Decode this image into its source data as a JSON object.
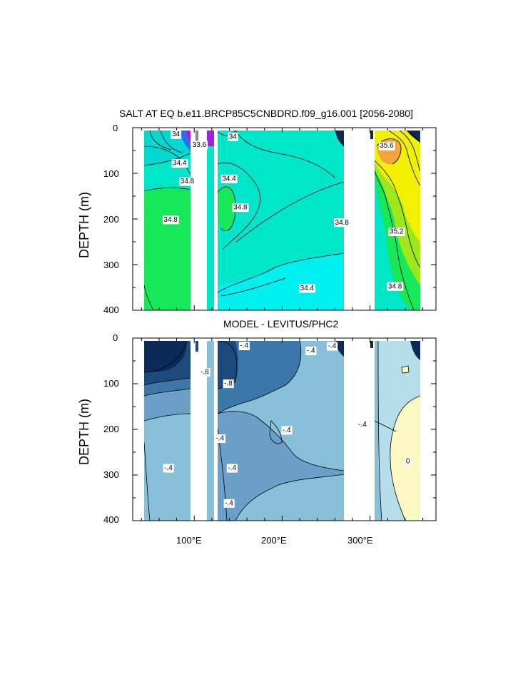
{
  "chart_data": [
    {
      "type": "heatmap",
      "title": "SALT AT EQ b.e11.BRCP85C5CNBDRD.f09_g16.001 [2056-2080]",
      "ylabel": "DEPTH (m)",
      "ylim": [
        0,
        400
      ],
      "y_reversed": true,
      "yticks": [
        "0",
        "100",
        "200",
        "300",
        "400"
      ],
      "xticks": [
        "",
        "",
        ""
      ],
      "xrange_deg_east": [
        30,
        375
      ],
      "contour_labels": [
        {
          "text": "34",
          "x": 57,
          "y": 15
        },
        {
          "text": "33.6",
          "x": 88,
          "y": 38
        },
        {
          "text": "34.4",
          "x": 62,
          "y": 78
        },
        {
          "text": "34.8",
          "x": 72,
          "y": 118
        },
        {
          "text": "34.8",
          "x": 50,
          "y": 202
        },
        {
          "text": "34",
          "x": 132,
          "y": 20
        },
        {
          "text": "34.4",
          "x": 127,
          "y": 112
        },
        {
          "text": "34.8",
          "x": 142,
          "y": 175
        },
        {
          "text": "34.8",
          "x": 276,
          "y": 208
        },
        {
          "text": "34.4",
          "x": 230,
          "y": 352
        },
        {
          "text": "35.6",
          "x": 335,
          "y": 40
        },
        {
          "text": "35.2",
          "x": 348,
          "y": 228
        },
        {
          "text": "34.8",
          "x": 346,
          "y": 348
        }
      ],
      "land_masks_deg_east": [
        [
          98,
          117
        ],
        [
          128,
          131
        ],
        [
          278,
          313
        ]
      ]
    },
    {
      "type": "heatmap",
      "title": "MODEL - LEVITUS/PHC2",
      "ylabel": "DEPTH (m)",
      "ylim": [
        0,
        400
      ],
      "y_reversed": true,
      "yticks": [
        "0",
        "100",
        "200",
        "300",
        "400"
      ],
      "xticks": [
        "100°E",
        "200°E",
        "300°E"
      ],
      "xrange_deg_east": [
        30,
        375
      ],
      "contour_labels": [
        {
          "text": "-.8",
          "x": 95,
          "y": 75
        },
        {
          "text": "-.4",
          "x": 147,
          "y": 17
        },
        {
          "text": "-.8",
          "x": 126,
          "y": 100
        },
        {
          "text": "-.4",
          "x": 235,
          "y": 28
        },
        {
          "text": "-.4",
          "x": 263,
          "y": 18
        },
        {
          "text": "-.4",
          "x": 203,
          "y": 202
        },
        {
          "text": "-.4",
          "x": 115,
          "y": 220
        },
        {
          "text": "-.4",
          "x": 47,
          "y": 285
        },
        {
          "text": "-.4",
          "x": 131,
          "y": 285
        },
        {
          "text": "-.4",
          "x": 127,
          "y": 362
        },
        {
          "text": "-.4",
          "x": 303,
          "y": 190
        },
        {
          "text": "0",
          "x": 363,
          "y": 270
        }
      ],
      "land_masks_deg_east": [
        [
          98,
          117
        ],
        [
          128,
          131
        ],
        [
          278,
          313
        ]
      ]
    }
  ],
  "colors": {
    "top_base": "#00e6ca",
    "top_green": "#16e85a",
    "top_cyan": "#00f0f0",
    "top_yellow": "#f0f000",
    "top_orange": "#f2a53a",
    "top_yellowgreen": "#9ee81a",
    "bot_dark": "#0b2a57",
    "bot_navy": "#1c4a7c",
    "bot_mid": "#3b77a9",
    "bot_steel": "#6aa0c8",
    "bot_light": "#88c0da",
    "bot_pale": "#b6deea",
    "bot_cream": "#fcf8c4"
  }
}
